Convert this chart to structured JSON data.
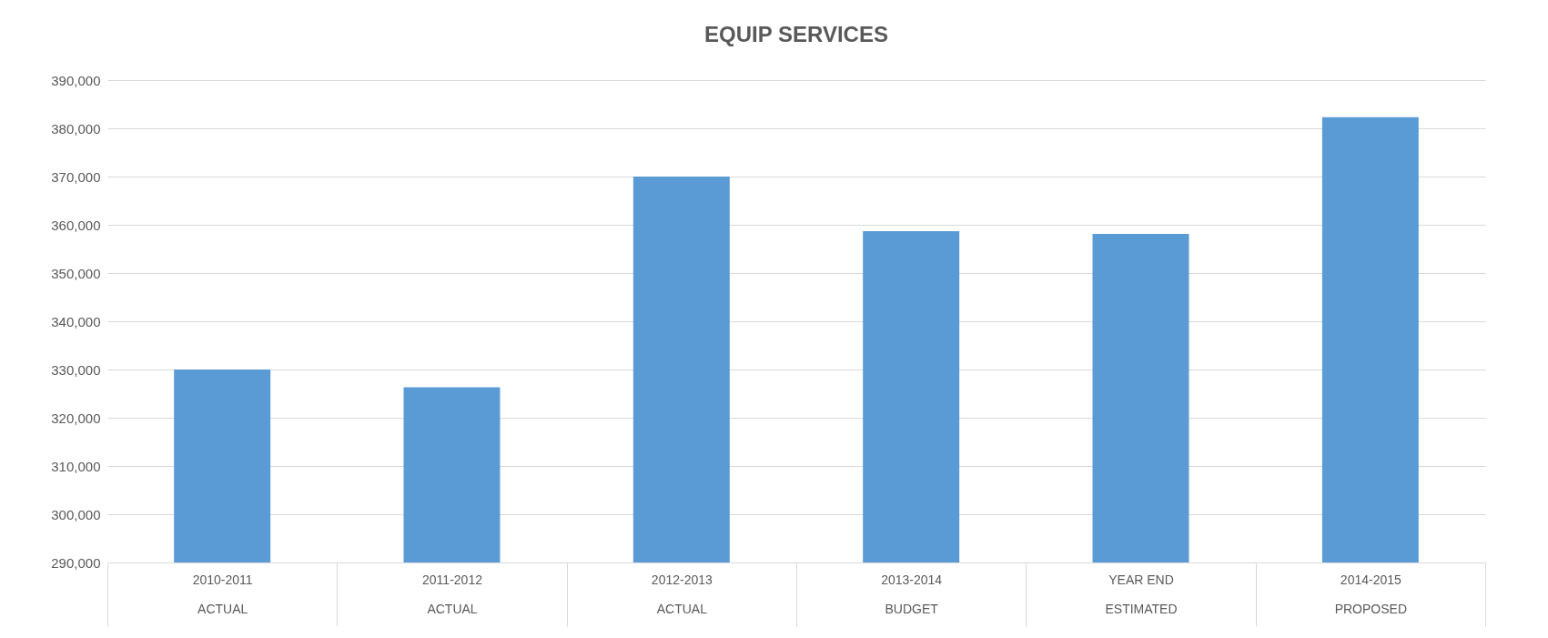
{
  "chart_data": {
    "type": "bar",
    "title": "EQUIP SERVICES",
    "categories": [
      "2010-2011\nACTUAL",
      "2011-2012\nACTUAL",
      "2012-2013\nACTUAL",
      "2013-2014\nBUDGET",
      "YEAR END\nESTIMATED",
      "2014-2015\nPROPOSED"
    ],
    "values": [
      330000,
      326300,
      370000,
      358700,
      358100,
      382300
    ],
    "color": "#5b9bd5",
    "ylim": [
      290000,
      390000
    ],
    "yticks": [
      {
        "value": 290000,
        "label": "290,000"
      },
      {
        "value": 300000,
        "label": "300,000"
      },
      {
        "value": 310000,
        "label": "310,000"
      },
      {
        "value": 320000,
        "label": "320,000"
      },
      {
        "value": 330000,
        "label": "330,000"
      },
      {
        "value": 340000,
        "label": "340,000"
      },
      {
        "value": 350000,
        "label": "350,000"
      },
      {
        "value": 360000,
        "label": "360,000"
      },
      {
        "value": 370000,
        "label": "370,000"
      },
      {
        "value": 380000,
        "label": "380,000"
      },
      {
        "value": 390000,
        "label": "390,000"
      }
    ],
    "grid": "y"
  }
}
